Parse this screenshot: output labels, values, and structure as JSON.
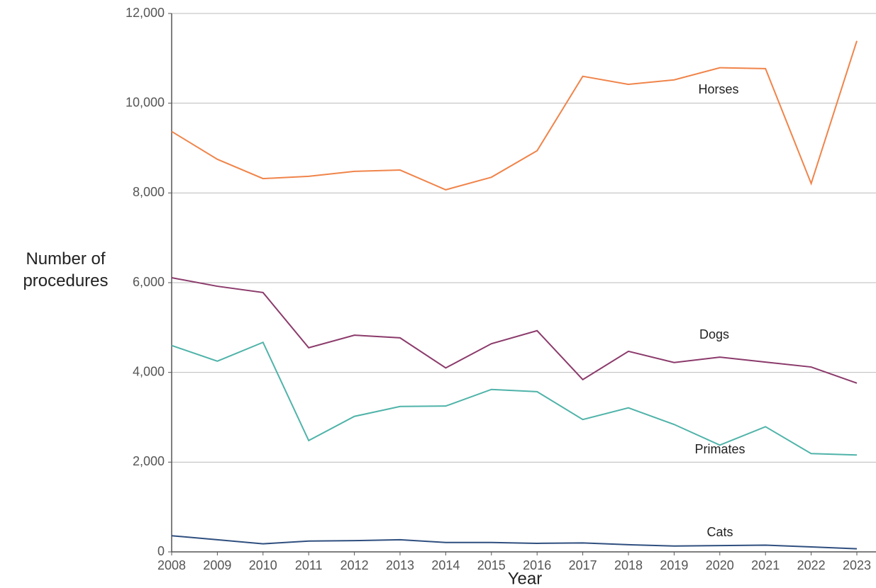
{
  "chart_data": {
    "type": "line",
    "x_label": "Year",
    "y_label": "Number of procedures",
    "x": [
      2008,
      2009,
      2010,
      2011,
      2012,
      2013,
      2014,
      2015,
      2016,
      2017,
      2018,
      2019,
      2020,
      2021,
      2022,
      2023
    ],
    "xlim": [
      2008,
      2023
    ],
    "xticks": [
      2008,
      2009,
      2010,
      2011,
      2012,
      2013,
      2014,
      2015,
      2016,
      2017,
      2018,
      2019,
      2020,
      2021,
      2022,
      2023
    ],
    "ylim": [
      0,
      12000
    ],
    "yticks": [
      0,
      {
        "value": 2000,
        "label": "2,000"
      },
      {
        "value": 4000,
        "label": "4,000"
      },
      {
        "value": 6000,
        "label": "6,000"
      },
      {
        "value": 8000,
        "label": "8,000"
      },
      {
        "value": 10000,
        "label": "10,000"
      },
      {
        "value": 12000,
        "label": "12,000"
      }
    ],
    "grid": true,
    "series": [
      {
        "name": "Horses",
        "color": "#f0844a",
        "values": [
          9370,
          8750,
          8320,
          8370,
          8480,
          8510,
          8070,
          8350,
          8940,
          10600,
          10420,
          10520,
          10790,
          10770,
          8210,
          11390
        ]
      },
      {
        "name": "Dogs",
        "color": "#8b3a6b",
        "values": [
          6110,
          5920,
          5780,
          4550,
          4830,
          4770,
          4100,
          4640,
          4930,
          3840,
          4470,
          4220,
          4340,
          4230,
          4120,
          3760
        ]
      },
      {
        "name": "Primates",
        "color": "#4fb3a9",
        "values": [
          4600,
          4250,
          4670,
          2480,
          3020,
          3240,
          3250,
          3620,
          3570,
          2950,
          3210,
          2840,
          2380,
          2790,
          2190,
          2160
        ]
      },
      {
        "name": "Cats",
        "color": "#2f4f7f",
        "values": [
          360,
          270,
          180,
          240,
          250,
          270,
          210,
          210,
          190,
          200,
          160,
          130,
          140,
          150,
          110,
          70
        ]
      }
    ]
  }
}
